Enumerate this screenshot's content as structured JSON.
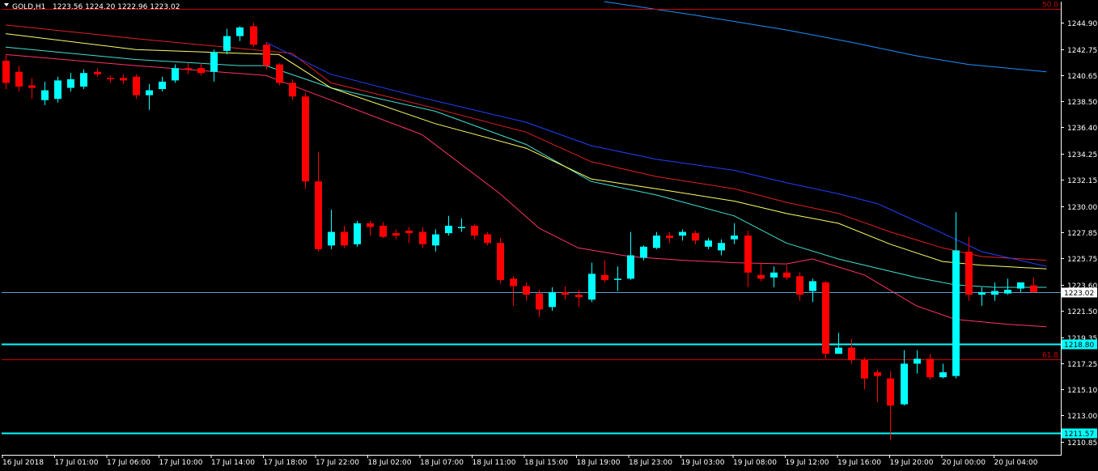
{
  "header": {
    "symbol": "GOLD,H1",
    "ohlc": "1223.56 1224.20 1222.96 1223.02"
  },
  "colors": {
    "background": "#000000",
    "bull": "#00FFFF",
    "bear": "#FF0000",
    "axis": "#FFFFFF",
    "ma_fast": "#FF3366",
    "ma_cyan": "#40E0D0",
    "ma_yellow": "#FFFF66",
    "ma_red": "#E02020",
    "ma_blue": "#2040FF",
    "ma_lightblue": "#1E90FF",
    "hline_cyan": "#00FFFF",
    "fib_red": "#CC0000",
    "current_price": "#5FA0C8"
  },
  "chart_data": {
    "type": "candlestick",
    "ylim": [
      1209.8,
      1246.6
    ],
    "y_ticks": [
      "1244.90",
      "1242.75",
      "1240.65",
      "1238.50",
      "1236.40",
      "1234.25",
      "1232.15",
      "1230.00",
      "1227.85",
      "1225.75",
      "1223.60",
      "1221.50",
      "1219.35",
      "1217.25",
      "1215.10",
      "1213.00",
      "1210.85"
    ],
    "x_labels": [
      "16 Jul 2018",
      "17 Jul 01:00",
      "17 Jul 06:00",
      "17 Jul 10:00",
      "17 Jul 14:00",
      "17 Jul 18:00",
      "17 Jul 22:00",
      "18 Jul 02:00",
      "18 Jul 07:00",
      "18 Jul 11:00",
      "18 Jul 15:00",
      "18 Jul 19:00",
      "18 Jul 23:00",
      "19 Jul 03:00",
      "19 Jul 08:00",
      "19 Jul 12:00",
      "19 Jul 16:00",
      "19 Jul 20:00",
      "20 Jul 00:00",
      "20 Jul 04:00"
    ],
    "candles": [
      {
        "o": 1241.8,
        "h": 1242.3,
        "c": 1240.0,
        "l": 1239.5
      },
      {
        "o": 1240.9,
        "h": 1241.4,
        "c": 1239.7,
        "l": 1239.3
      },
      {
        "o": 1239.8,
        "h": 1240.4,
        "c": 1239.6,
        "l": 1238.7
      },
      {
        "o": 1238.6,
        "h": 1240.1,
        "c": 1239.4,
        "l": 1238.2
      },
      {
        "o": 1238.7,
        "h": 1240.5,
        "c": 1240.2,
        "l": 1238.4
      },
      {
        "o": 1239.6,
        "h": 1240.8,
        "c": 1240.3,
        "l": 1239.3
      },
      {
        "o": 1239.7,
        "h": 1241.1,
        "c": 1240.8,
        "l": 1239.5
      },
      {
        "o": 1240.9,
        "h": 1241.2,
        "c": 1240.7,
        "l": 1240.5
      },
      {
        "o": 1240.4,
        "h": 1240.6,
        "c": 1240.3,
        "l": 1240.0
      },
      {
        "o": 1240.4,
        "h": 1240.7,
        "c": 1240.2,
        "l": 1239.9
      },
      {
        "o": 1240.5,
        "h": 1240.7,
        "c": 1239.0,
        "l": 1238.7
      },
      {
        "o": 1239.0,
        "h": 1239.9,
        "c": 1239.4,
        "l": 1237.8
      },
      {
        "o": 1239.5,
        "h": 1240.5,
        "c": 1240.1,
        "l": 1239.3
      },
      {
        "o": 1240.2,
        "h": 1241.5,
        "c": 1241.2,
        "l": 1240.0
      },
      {
        "o": 1241.2,
        "h": 1241.6,
        "c": 1241.1,
        "l": 1240.7
      },
      {
        "o": 1241.2,
        "h": 1241.6,
        "c": 1240.8,
        "l": 1240.6
      },
      {
        "o": 1240.9,
        "h": 1242.7,
        "c": 1242.5,
        "l": 1240.1
      },
      {
        "o": 1242.6,
        "h": 1244.4,
        "c": 1243.8,
        "l": 1242.3
      },
      {
        "o": 1243.8,
        "h": 1244.6,
        "c": 1244.5,
        "l": 1243.4
      },
      {
        "o": 1244.6,
        "h": 1244.9,
        "c": 1243.1,
        "l": 1242.9
      },
      {
        "o": 1243.1,
        "h": 1243.3,
        "c": 1241.4,
        "l": 1241.1
      },
      {
        "o": 1241.5,
        "h": 1241.6,
        "c": 1240.0,
        "l": 1239.8
      },
      {
        "o": 1240.0,
        "h": 1240.3,
        "c": 1238.9,
        "l": 1238.6
      },
      {
        "o": 1238.9,
        "h": 1239.2,
        "c": 1232.0,
        "l": 1231.4
      },
      {
        "o": 1232.0,
        "h": 1234.4,
        "c": 1226.5,
        "l": 1226.3
      },
      {
        "o": 1226.8,
        "h": 1229.7,
        "c": 1227.9,
        "l": 1226.5
      },
      {
        "o": 1227.9,
        "h": 1228.4,
        "c": 1226.8,
        "l": 1226.6
      },
      {
        "o": 1226.9,
        "h": 1228.8,
        "c": 1228.6,
        "l": 1226.7
      },
      {
        "o": 1228.6,
        "h": 1228.8,
        "c": 1228.3,
        "l": 1227.6
      },
      {
        "o": 1228.4,
        "h": 1228.7,
        "c": 1227.5,
        "l": 1227.4
      },
      {
        "o": 1227.8,
        "h": 1228.1,
        "c": 1227.6,
        "l": 1227.3
      },
      {
        "o": 1228.0,
        "h": 1228.3,
        "c": 1227.8,
        "l": 1227.0
      },
      {
        "o": 1227.9,
        "h": 1228.3,
        "c": 1226.9,
        "l": 1226.6
      },
      {
        "o": 1226.8,
        "h": 1228.1,
        "c": 1227.7,
        "l": 1226.3
      },
      {
        "o": 1227.8,
        "h": 1229.2,
        "c": 1228.4,
        "l": 1227.6
      },
      {
        "o": 1228.2,
        "h": 1229.0,
        "c": 1228.3,
        "l": 1227.9
      },
      {
        "o": 1228.4,
        "h": 1228.5,
        "c": 1227.6,
        "l": 1227.3
      },
      {
        "o": 1227.7,
        "h": 1227.9,
        "c": 1227.0,
        "l": 1226.8
      },
      {
        "o": 1227.0,
        "h": 1227.4,
        "c": 1224.0,
        "l": 1223.7
      },
      {
        "o": 1224.1,
        "h": 1224.3,
        "c": 1223.5,
        "l": 1221.9
      },
      {
        "o": 1223.5,
        "h": 1223.8,
        "c": 1222.8,
        "l": 1222.3
      },
      {
        "o": 1222.9,
        "h": 1223.2,
        "c": 1221.6,
        "l": 1221.0
      },
      {
        "o": 1221.8,
        "h": 1223.4,
        "c": 1223.0,
        "l": 1221.5
      },
      {
        "o": 1223.0,
        "h": 1223.5,
        "c": 1222.8,
        "l": 1222.4
      },
      {
        "o": 1222.8,
        "h": 1223.2,
        "c": 1222.6,
        "l": 1221.8
      },
      {
        "o": 1222.4,
        "h": 1225.4,
        "c": 1224.5,
        "l": 1222.2
      },
      {
        "o": 1224.4,
        "h": 1225.6,
        "c": 1224.0,
        "l": 1223.8
      },
      {
        "o": 1224.0,
        "h": 1225.1,
        "c": 1224.1,
        "l": 1223.1
      },
      {
        "o": 1224.1,
        "h": 1227.9,
        "c": 1226.0,
        "l": 1224.0
      },
      {
        "o": 1225.8,
        "h": 1226.8,
        "c": 1226.7,
        "l": 1225.6
      },
      {
        "o": 1226.6,
        "h": 1227.9,
        "c": 1227.6,
        "l": 1226.5
      },
      {
        "o": 1227.6,
        "h": 1227.9,
        "c": 1227.4,
        "l": 1227.0
      },
      {
        "o": 1227.6,
        "h": 1228.1,
        "c": 1227.9,
        "l": 1227.2
      },
      {
        "o": 1227.8,
        "h": 1228.0,
        "c": 1227.2,
        "l": 1226.9
      },
      {
        "o": 1226.7,
        "h": 1227.4,
        "c": 1227.2,
        "l": 1226.5
      },
      {
        "o": 1226.4,
        "h": 1227.3,
        "c": 1227.0,
        "l": 1226.0
      },
      {
        "o": 1227.3,
        "h": 1228.6,
        "c": 1227.6,
        "l": 1226.9
      },
      {
        "o": 1227.6,
        "h": 1228.0,
        "c": 1224.6,
        "l": 1223.4
      },
      {
        "o": 1224.4,
        "h": 1225.4,
        "c": 1224.1,
        "l": 1223.9
      },
      {
        "o": 1224.2,
        "h": 1225.1,
        "c": 1224.6,
        "l": 1223.4
      },
      {
        "o": 1224.6,
        "h": 1225.2,
        "c": 1224.2,
        "l": 1224.0
      },
      {
        "o": 1224.3,
        "h": 1224.6,
        "c": 1222.8,
        "l": 1222.3
      },
      {
        "o": 1223.1,
        "h": 1224.1,
        "c": 1223.9,
        "l": 1222.2
      },
      {
        "o": 1223.8,
        "h": 1223.9,
        "c": 1218.0,
        "l": 1217.6
      },
      {
        "o": 1218.0,
        "h": 1219.7,
        "c": 1218.5,
        "l": 1218.0
      },
      {
        "o": 1218.5,
        "h": 1219.2,
        "c": 1217.5,
        "l": 1217.2
      },
      {
        "o": 1217.5,
        "h": 1217.7,
        "c": 1216.0,
        "l": 1215.1
      },
      {
        "o": 1216.5,
        "h": 1216.7,
        "c": 1216.2,
        "l": 1214.1
      },
      {
        "o": 1216.0,
        "h": 1216.6,
        "c": 1213.8,
        "l": 1211.0
      },
      {
        "o": 1213.9,
        "h": 1218.3,
        "c": 1217.2,
        "l": 1213.8
      },
      {
        "o": 1217.2,
        "h": 1218.3,
        "c": 1217.6,
        "l": 1216.4
      },
      {
        "o": 1217.6,
        "h": 1218.0,
        "c": 1216.1,
        "l": 1215.9
      },
      {
        "o": 1216.1,
        "h": 1217.2,
        "c": 1216.5,
        "l": 1216.0
      },
      {
        "o": 1216.2,
        "h": 1229.5,
        "c": 1226.4,
        "l": 1216.0
      },
      {
        "o": 1226.3,
        "h": 1227.5,
        "c": 1222.8,
        "l": 1222.3
      },
      {
        "o": 1222.8,
        "h": 1223.4,
        "c": 1223.0,
        "l": 1221.9
      },
      {
        "o": 1222.8,
        "h": 1223.8,
        "c": 1223.1,
        "l": 1222.3
      },
      {
        "o": 1222.9,
        "h": 1224.1,
        "c": 1223.2,
        "l": 1222.8
      },
      {
        "o": 1223.3,
        "h": 1223.8,
        "c": 1223.8,
        "l": 1223.0
      },
      {
        "o": 1223.56,
        "h": 1224.2,
        "c": 1223.02,
        "l": 1222.96
      }
    ],
    "moving_averages": [
      {
        "key": "ma_fast",
        "points": [
          [
            0,
            1242.3
          ],
          [
            10,
            1241.4
          ],
          [
            20,
            1240.6
          ],
          [
            25,
            1238.6
          ],
          [
            32,
            1235.8
          ],
          [
            38,
            1231.0
          ],
          [
            41,
            1228.2
          ],
          [
            44,
            1226.6
          ],
          [
            48,
            1225.9
          ],
          [
            52,
            1225.6
          ],
          [
            56,
            1225.4
          ],
          [
            60,
            1225.3
          ],
          [
            62,
            1225.7
          ],
          [
            66,
            1224.4
          ],
          [
            70,
            1221.9
          ],
          [
            73,
            1220.8
          ],
          [
            77,
            1220.4
          ],
          [
            80,
            1220.2
          ]
        ]
      },
      {
        "key": "ma_cyan",
        "points": [
          [
            0,
            1242.9
          ],
          [
            10,
            1241.9
          ],
          [
            18,
            1241.4
          ],
          [
            20,
            1241.4
          ],
          [
            25,
            1239.6
          ],
          [
            33,
            1237.7
          ],
          [
            40,
            1235.0
          ],
          [
            45,
            1232.0
          ],
          [
            50,
            1230.9
          ],
          [
            56,
            1229.2
          ],
          [
            60,
            1227.0
          ],
          [
            64,
            1225.7
          ],
          [
            70,
            1224.2
          ],
          [
            73,
            1223.6
          ],
          [
            76,
            1223.4
          ],
          [
            80,
            1223.4
          ]
        ]
      },
      {
        "key": "ma_yellow",
        "points": [
          [
            0,
            1244.0
          ],
          [
            10,
            1242.7
          ],
          [
            18,
            1242.4
          ],
          [
            21,
            1242.3
          ],
          [
            25,
            1239.6
          ],
          [
            33,
            1236.7
          ],
          [
            40,
            1234.7
          ],
          [
            45,
            1232.2
          ],
          [
            50,
            1231.4
          ],
          [
            56,
            1230.4
          ],
          [
            60,
            1229.4
          ],
          [
            64,
            1228.6
          ],
          [
            68,
            1226.9
          ],
          [
            72,
            1225.5
          ],
          [
            75,
            1225.2
          ],
          [
            80,
            1224.9
          ]
        ]
      },
      {
        "key": "ma_red",
        "points": [
          [
            0,
            1244.7
          ],
          [
            10,
            1243.6
          ],
          [
            20,
            1242.6
          ],
          [
            22,
            1242.4
          ],
          [
            25,
            1240.0
          ],
          [
            32,
            1238.2
          ],
          [
            40,
            1236.0
          ],
          [
            45,
            1233.6
          ],
          [
            50,
            1232.4
          ],
          [
            56,
            1231.4
          ],
          [
            60,
            1230.3
          ],
          [
            64,
            1229.4
          ],
          [
            68,
            1227.9
          ],
          [
            72,
            1226.6
          ],
          [
            75,
            1225.9
          ],
          [
            80,
            1225.6
          ]
        ]
      },
      {
        "key": "ma_blue",
        "points": [
          [
            20,
            1243.3
          ],
          [
            25,
            1240.7
          ],
          [
            32,
            1238.8
          ],
          [
            40,
            1236.8
          ],
          [
            45,
            1234.9
          ],
          [
            50,
            1233.8
          ],
          [
            56,
            1232.9
          ],
          [
            60,
            1231.9
          ],
          [
            64,
            1231.0
          ],
          [
            67,
            1230.2
          ],
          [
            72,
            1227.8
          ],
          [
            75,
            1226.3
          ],
          [
            80,
            1225.1
          ]
        ]
      },
      {
        "key": "ma_lightblue",
        "points": [
          [
            46,
            1246.6
          ],
          [
            53,
            1245.5
          ],
          [
            60,
            1244.3
          ],
          [
            65,
            1243.3
          ],
          [
            70,
            1242.2
          ],
          [
            74,
            1241.5
          ],
          [
            80,
            1240.9
          ]
        ]
      }
    ],
    "hlines": [
      {
        "y": 1246.0,
        "key": "fib_red",
        "label": "50.0",
        "box": false,
        "thick": false
      },
      {
        "y": 1218.8,
        "key": "hline_cyan",
        "label": "1218.80",
        "box": true,
        "thick": true
      },
      {
        "y": 1217.55,
        "key": "fib_red",
        "label": "61.8",
        "box": false,
        "thick": false
      },
      {
        "y": 1211.57,
        "key": "hline_cyan",
        "label": "1211.57",
        "box": true,
        "thick": true
      },
      {
        "y": 1223.02,
        "key": "current_price",
        "label": "1223.02",
        "box": true,
        "thick": false
      }
    ]
  }
}
